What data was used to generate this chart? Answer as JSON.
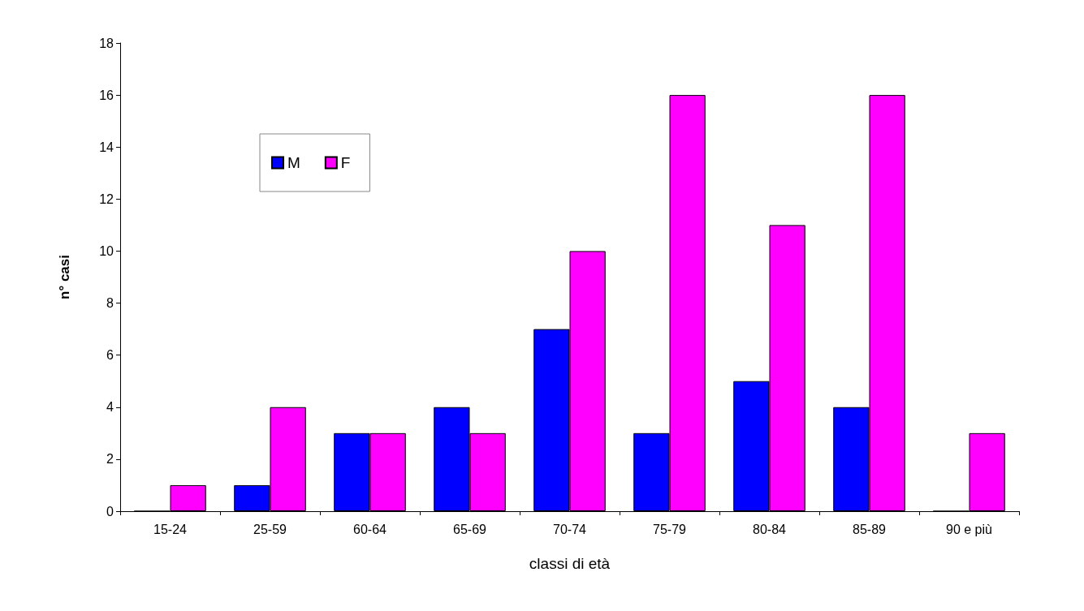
{
  "chart_data": {
    "type": "bar",
    "xlabel": "classi di età",
    "ylabel": "n° casi",
    "categories": [
      "15-24",
      "25-59",
      "60-64",
      "65-69",
      "70-74",
      "75-79",
      "80-84",
      "85-89",
      "90 e più"
    ],
    "series": [
      {
        "name": "M",
        "color": "#0000ff",
        "values": [
          0,
          1,
          3,
          4,
          7,
          3,
          5,
          4,
          0
        ]
      },
      {
        "name": "F",
        "color": "#ff00ff",
        "values": [
          1,
          4,
          3,
          3,
          10,
          16,
          11,
          16,
          3
        ]
      }
    ],
    "ylim": [
      0,
      18
    ],
    "yticks": [
      0,
      2,
      4,
      6,
      8,
      10,
      12,
      14,
      16,
      18
    ],
    "grid": false,
    "legend": "top left"
  }
}
